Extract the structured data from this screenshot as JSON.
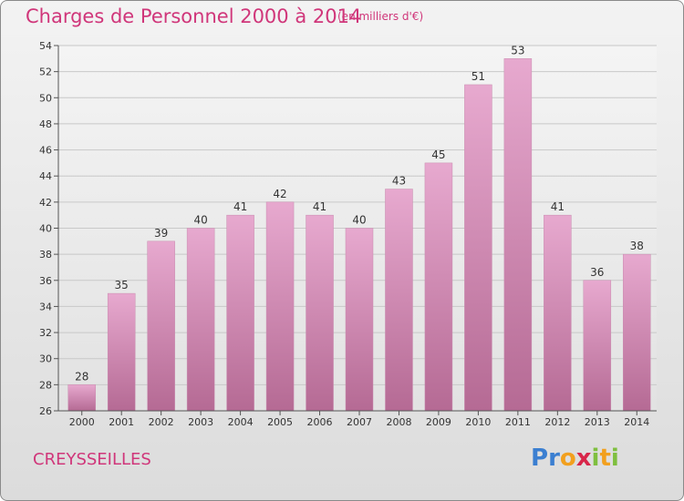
{
  "title": "Charges de Personnel 2000 à 2014",
  "subtitle": "(en milliers d'€)",
  "commune": "CREYSSEILLES",
  "logo": {
    "letters": [
      "P",
      "r",
      "o",
      "x",
      "i",
      "t",
      "i"
    ],
    "colors": [
      "#3b7fd1",
      "#3b7fd1",
      "#f2a01e",
      "#d8264a",
      "#7fbf3f",
      "#f2a01e",
      "#7fbf3f"
    ]
  },
  "colors": {
    "title": "#d0367a",
    "bar_top": "#e7a9cf",
    "bar_bottom": "#b56a94"
  },
  "chart_data": {
    "type": "bar",
    "categories": [
      "2000",
      "2001",
      "2002",
      "2003",
      "2004",
      "2005",
      "2006",
      "2007",
      "2008",
      "2009",
      "2010",
      "2011",
      "2012",
      "2013",
      "2014"
    ],
    "values": [
      28,
      35,
      39,
      40,
      41,
      42,
      41,
      40,
      43,
      45,
      51,
      53,
      41,
      36,
      38
    ],
    "ylim": [
      26,
      54
    ],
    "yticks": [
      26,
      28,
      30,
      32,
      34,
      36,
      38,
      40,
      42,
      44,
      46,
      48,
      50,
      52,
      54
    ],
    "grid": true
  }
}
